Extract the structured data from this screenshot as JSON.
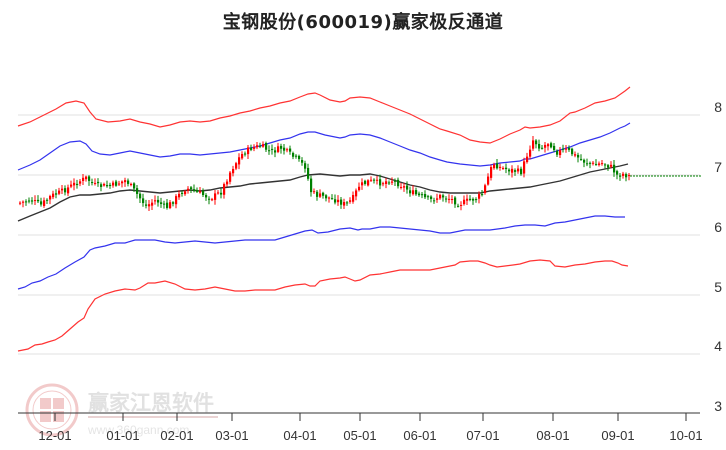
{
  "title": "宝钢股份(600019)赢家极反通道",
  "watermark": {
    "brand": "赢家江恩软件",
    "url": "www.360gann.com",
    "seal_chars": [
      "江",
      "赢",
      "恩",
      "家"
    ]
  },
  "colors": {
    "up_candle": "#ff0000",
    "down_candle": "#008000",
    "outer_band": "#ff3333",
    "inner_band": "#3333ee",
    "middle_line": "#333333",
    "last_price_line": "#008000",
    "grid": "#e0e0e0"
  },
  "chart_data": {
    "type": "candlestick_with_channels",
    "title": "宝钢股份(600019)赢家极反通道",
    "xlabel": "",
    "ylabel": "",
    "ylim": [
      3,
      8.5
    ],
    "y_ticks": [
      "8",
      "7",
      "6",
      "5",
      "4",
      "3"
    ],
    "x_ticks": [
      "12-01",
      "01-01",
      "02-01",
      "03-01",
      "04-01",
      "05-01",
      "06-01",
      "07-01",
      "08-01",
      "09-01",
      "10-01"
    ],
    "grid": "horizontal",
    "legend": "none",
    "last_price": 6.98,
    "series": [
      {
        "name": "outer_upper_band",
        "color": "red",
        "x": [
          "12-01",
          "01-01",
          "02-01",
          "03-01",
          "04-01",
          "05-01",
          "06-01",
          "07-01",
          "08-01",
          "09-01"
        ],
        "values": [
          7.9,
          7.8,
          7.85,
          8.0,
          8.2,
          8.15,
          7.9,
          7.45,
          7.7,
          8.3
        ]
      },
      {
        "name": "inner_upper_band",
        "color": "blue",
        "x": [
          "12-01",
          "01-01",
          "02-01",
          "03-01",
          "04-01",
          "05-01",
          "06-01",
          "07-01",
          "08-01",
          "09-01"
        ],
        "values": [
          7.1,
          7.4,
          7.45,
          7.6,
          7.85,
          7.8,
          7.55,
          7.15,
          7.4,
          7.85
        ]
      },
      {
        "name": "middle_line",
        "color": "black",
        "x": [
          "12-01",
          "01-01",
          "02-01",
          "03-01",
          "04-01",
          "05-01",
          "06-01",
          "07-01",
          "08-01",
          "09-01"
        ],
        "values": [
          6.35,
          6.7,
          6.75,
          6.85,
          7.0,
          6.95,
          6.8,
          6.65,
          6.9,
          7.15
        ]
      },
      {
        "name": "inner_lower_band",
        "color": "blue",
        "x": [
          "12-01",
          "01-01",
          "02-01",
          "03-01",
          "04-01",
          "05-01",
          "06-01",
          "07-01",
          "08-01",
          "09-01"
        ],
        "values": [
          5.1,
          5.6,
          5.95,
          6.0,
          6.05,
          6.1,
          6.08,
          6.1,
          6.15,
          6.28
        ]
      },
      {
        "name": "outer_lower_band",
        "color": "red",
        "x": [
          "12-01",
          "01-01",
          "02-01",
          "03-01",
          "04-01",
          "05-01",
          "06-01",
          "07-01",
          "08-01",
          "09-01"
        ],
        "values": [
          4.05,
          4.6,
          5.1,
          5.05,
          5.15,
          5.35,
          5.4,
          5.55,
          5.5,
          5.5
        ]
      },
      {
        "name": "close_price",
        "color": "candles",
        "x": [
          "12-01",
          "01-01",
          "02-01",
          "03-01",
          "04-01",
          "05-01",
          "06-01",
          "07-01",
          "08-01",
          "09-01"
        ],
        "values": [
          6.5,
          6.9,
          6.65,
          7.4,
          6.6,
          6.85,
          6.55,
          7.1,
          7.45,
          6.98
        ]
      }
    ]
  }
}
